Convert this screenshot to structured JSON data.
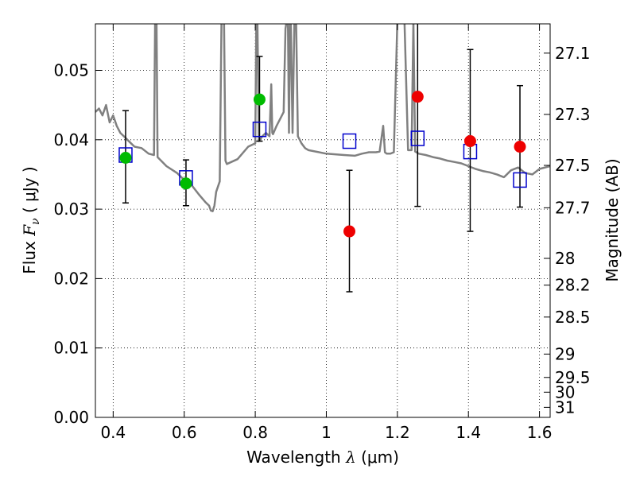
{
  "chart_data": {
    "type": "scatter",
    "title": "",
    "xlabel": "Wavelength",
    "xlabel_symbol": "λ",
    "xlabel_unit": "(μm)",
    "ylabel": "Flux",
    "ylabel_symbol": "F",
    "ylabel_subscript": "ν",
    "ylabel_unit": "( μJy )",
    "y2label": "Magnitude (AB)",
    "xlim": [
      0.35,
      1.63
    ],
    "ylim": [
      0.0,
      0.0567
    ],
    "xticks": [
      0.4,
      0.6,
      0.8,
      1.0,
      1.2,
      1.4,
      1.6
    ],
    "xtick_labels": [
      "0.4",
      "0.6",
      "0.8",
      "1",
      "1.2",
      "1.4",
      "1.6"
    ],
    "yticks": [
      0.0,
      0.01,
      0.02,
      0.03,
      0.04,
      0.05
    ],
    "ytick_labels": [
      "0.00",
      "0.01",
      "0.02",
      "0.03",
      "0.04",
      "0.05"
    ],
    "y2ticks": [
      27.1,
      27.3,
      27.5,
      27.7,
      28.0,
      28.2,
      28.5,
      29.0,
      29.5,
      30.0,
      31.0
    ],
    "y2tick_labels": [
      "27.1",
      "27.3",
      "27.5",
      "27.7",
      "28",
      "28.2",
      "28.5",
      "29",
      "29.5",
      "30",
      "31"
    ],
    "grid": true,
    "colors": {
      "model": "#808080",
      "model_points": "#0000cc",
      "green_points": "#00bb00",
      "red_points": "#ee0000",
      "errorbars": "#000000"
    },
    "model_spectrum": {
      "x": [
        0.35,
        0.36,
        0.37,
        0.38,
        0.39,
        0.4,
        0.41,
        0.42,
        0.43,
        0.44,
        0.45,
        0.46,
        0.48,
        0.5,
        0.515,
        0.518,
        0.52,
        0.522,
        0.525,
        0.55,
        0.58,
        0.6,
        0.62,
        0.64,
        0.66,
        0.67,
        0.675,
        0.68,
        0.685,
        0.69,
        0.7,
        0.705,
        0.708,
        0.712,
        0.716,
        0.72,
        0.75,
        0.78,
        0.8,
        0.803,
        0.806,
        0.81,
        0.82,
        0.83,
        0.84,
        0.845,
        0.848,
        0.85,
        0.86,
        0.88,
        0.885,
        0.888,
        0.892,
        0.895,
        0.898,
        0.9,
        0.905,
        0.91,
        0.915,
        0.92,
        0.925,
        0.93,
        0.94,
        0.95,
        1.0,
        1.05,
        1.08,
        1.1,
        1.12,
        1.14,
        1.15,
        1.16,
        1.165,
        1.17,
        1.18,
        1.19,
        1.2,
        1.205,
        1.21,
        1.22,
        1.23,
        1.24,
        1.245,
        1.25,
        1.26,
        1.28,
        1.3,
        1.32,
        1.34,
        1.36,
        1.38,
        1.4,
        1.42,
        1.44,
        1.46,
        1.48,
        1.5,
        1.52,
        1.54,
        1.56,
        1.58,
        1.6,
        1.63
      ],
      "y": [
        0.044,
        0.0445,
        0.0435,
        0.045,
        0.0425,
        0.0435,
        0.042,
        0.041,
        0.0405,
        0.04,
        0.0395,
        0.039,
        0.0388,
        0.038,
        0.0378,
        0.057,
        0.057,
        0.057,
        0.0375,
        0.0362,
        0.0352,
        0.0342,
        0.0335,
        0.0322,
        0.031,
        0.0305,
        0.0298,
        0.0297,
        0.0305,
        0.0325,
        0.034,
        0.057,
        0.057,
        0.057,
        0.037,
        0.0365,
        0.0372,
        0.039,
        0.0395,
        0.057,
        0.057,
        0.0398,
        0.0405,
        0.041,
        0.0405,
        0.048,
        0.041,
        0.0408,
        0.042,
        0.044,
        0.056,
        0.057,
        0.057,
        0.041,
        0.057,
        0.057,
        0.041,
        0.057,
        0.057,
        0.0405,
        0.04,
        0.0395,
        0.0388,
        0.0385,
        0.038,
        0.0378,
        0.0377,
        0.038,
        0.0382,
        0.0382,
        0.0383,
        0.042,
        0.0382,
        0.038,
        0.038,
        0.0382,
        0.057,
        0.057,
        0.057,
        0.057,
        0.0385,
        0.0385,
        0.057,
        0.0383,
        0.038,
        0.0378,
        0.0375,
        0.0373,
        0.037,
        0.0368,
        0.0366,
        0.0362,
        0.0358,
        0.0355,
        0.0353,
        0.035,
        0.0346,
        0.0356,
        0.036,
        0.0352,
        0.035,
        0.0358,
        0.0362
      ]
    },
    "series": [
      {
        "marker": "open-square",
        "x": [
          0.435,
          0.605,
          0.812,
          1.065,
          1.257,
          1.405,
          1.545
        ],
        "y": [
          0.0378,
          0.0345,
          0.0415,
          0.0398,
          0.0402,
          0.0383,
          0.0342
        ]
      },
      {
        "marker": "filled-circle",
        "x": [
          0.435,
          0.605,
          0.812
        ],
        "y": [
          0.0374,
          0.0337,
          0.0458
        ],
        "yerr": [
          [
            0.0065,
            0.0068
          ],
          [
            0.0032,
            0.0034
          ],
          [
            0.006,
            0.0062
          ]
        ]
      },
      {
        "marker": "filled-circle",
        "x": [
          1.065,
          1.257,
          1.405,
          1.545
        ],
        "y": [
          0.0268,
          0.0462,
          0.0398,
          0.039
        ],
        "yerr": [
          [
            0.0087,
            0.0088
          ],
          [
            0.0158,
            0.0162
          ],
          [
            0.013,
            0.0132
          ],
          [
            0.0087,
            0.0088
          ]
        ]
      }
    ]
  }
}
